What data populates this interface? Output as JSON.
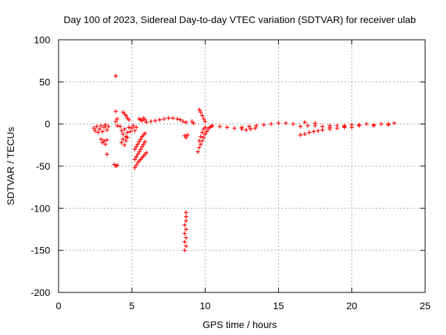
{
  "chart_data": {
    "type": "scatter",
    "title": "Day 100 of 2023, Sidereal Day-to-day VTEC variation (SDTVAR) for receiver ulab",
    "xlabel": "GPS time / hours",
    "ylabel": "SDTVAR / TECUs",
    "xlim": [
      0,
      25
    ],
    "ylim": [
      -200,
      100
    ],
    "xticks": [
      0,
      5,
      10,
      15,
      20,
      25
    ],
    "yticks": [
      -200,
      -150,
      -100,
      -50,
      0,
      50,
      100
    ],
    "grid": true,
    "marker": "plus",
    "color": "#ff0000",
    "series": [
      {
        "name": "SDTVAR",
        "points": [
          [
            2.4,
            -5
          ],
          [
            2.5,
            -8
          ],
          [
            2.6,
            -3
          ],
          [
            2.7,
            -10
          ],
          [
            2.8,
            -6
          ],
          [
            2.9,
            -2
          ],
          [
            3.0,
            -9
          ],
          [
            3.1,
            -4
          ],
          [
            3.2,
            -1
          ],
          [
            3.3,
            -7
          ],
          [
            3.4,
            -3
          ],
          [
            2.9,
            -18
          ],
          [
            3.0,
            -22
          ],
          [
            3.1,
            -20
          ],
          [
            3.2,
            -24
          ],
          [
            3.3,
            -19
          ],
          [
            3.3,
            -36
          ],
          [
            3.9,
            57
          ],
          [
            3.9,
            15
          ],
          [
            4.0,
            6
          ],
          [
            3.9,
            3
          ],
          [
            4.0,
            -2
          ],
          [
            3.8,
            -48
          ],
          [
            3.9,
            -50
          ],
          [
            4.0,
            -49
          ],
          [
            4.2,
            -3
          ],
          [
            4.3,
            -8
          ],
          [
            4.4,
            -12
          ],
          [
            4.5,
            -6
          ],
          [
            4.6,
            -15
          ],
          [
            4.7,
            -10
          ],
          [
            4.8,
            -4
          ],
          [
            4.9,
            -9
          ],
          [
            5.0,
            -5
          ],
          [
            5.1,
            -2
          ],
          [
            5.2,
            -8
          ],
          [
            5.3,
            -4
          ],
          [
            4.3,
            -22
          ],
          [
            4.4,
            -18
          ],
          [
            4.5,
            -25
          ],
          [
            4.6,
            -20
          ],
          [
            4.7,
            -16
          ],
          [
            4.4,
            14
          ],
          [
            4.5,
            12
          ],
          [
            4.6,
            10
          ],
          [
            4.7,
            7
          ],
          [
            4.8,
            5
          ],
          [
            5.2,
            -30
          ],
          [
            5.3,
            -27
          ],
          [
            5.4,
            -24
          ],
          [
            5.5,
            -21
          ],
          [
            5.6,
            -18
          ],
          [
            5.7,
            -15
          ],
          [
            5.8,
            -13
          ],
          [
            5.9,
            -11
          ],
          [
            5.2,
            -42
          ],
          [
            5.3,
            -39
          ],
          [
            5.4,
            -36
          ],
          [
            5.5,
            -33
          ],
          [
            5.6,
            -30
          ],
          [
            5.7,
            -27
          ],
          [
            5.8,
            -24
          ],
          [
            5.9,
            -21
          ],
          [
            5.2,
            -52
          ],
          [
            5.3,
            -49
          ],
          [
            5.4,
            -46
          ],
          [
            5.5,
            -44
          ],
          [
            5.6,
            -42
          ],
          [
            5.7,
            -40
          ],
          [
            5.8,
            -38
          ],
          [
            5.9,
            -36
          ],
          [
            6.0,
            -34
          ],
          [
            5.5,
            6
          ],
          [
            5.6,
            5
          ],
          [
            5.7,
            4
          ],
          [
            5.8,
            7
          ],
          [
            5.9,
            5
          ],
          [
            6.0,
            2
          ],
          [
            6.3,
            3
          ],
          [
            6.6,
            4
          ],
          [
            6.9,
            5
          ],
          [
            7.2,
            6
          ],
          [
            7.5,
            7
          ],
          [
            7.8,
            7
          ],
          [
            8.1,
            6
          ],
          [
            8.3,
            5
          ],
          [
            8.5,
            3
          ],
          [
            8.7,
            2
          ],
          [
            8.6,
            -14
          ],
          [
            8.7,
            -16
          ],
          [
            8.8,
            -13
          ],
          [
            9.1,
            3
          ],
          [
            9.2,
            1
          ],
          [
            8.7,
            -105
          ],
          [
            8.7,
            -110
          ],
          [
            8.7,
            -115
          ],
          [
            8.6,
            -120
          ],
          [
            8.7,
            -125
          ],
          [
            8.6,
            -130
          ],
          [
            8.7,
            -135
          ],
          [
            8.6,
            -140
          ],
          [
            8.7,
            -145
          ],
          [
            8.6,
            -150
          ],
          [
            9.6,
            17
          ],
          [
            9.7,
            14
          ],
          [
            9.8,
            10
          ],
          [
            9.9,
            6
          ],
          [
            10.0,
            3
          ],
          [
            9.5,
            -33
          ],
          [
            9.6,
            -28
          ],
          [
            9.7,
            -24
          ],
          [
            9.8,
            -20
          ],
          [
            9.9,
            -16
          ],
          [
            10.0,
            -12
          ],
          [
            10.1,
            -9
          ],
          [
            10.2,
            -6
          ],
          [
            10.3,
            -4
          ],
          [
            10.4,
            -3
          ],
          [
            9.6,
            -20
          ],
          [
            9.7,
            -15
          ],
          [
            9.8,
            -10
          ],
          [
            9.9,
            -6
          ],
          [
            10.0,
            -4
          ],
          [
            10.5,
            -2
          ],
          [
            11.0,
            -3
          ],
          [
            11.5,
            -4
          ],
          [
            12.0,
            -5
          ],
          [
            12.5,
            -4
          ],
          [
            13.0,
            -3
          ],
          [
            13.5,
            -2
          ],
          [
            14.0,
            -1
          ],
          [
            14.5,
            0
          ],
          [
            15.0,
            1
          ],
          [
            15.5,
            1
          ],
          [
            16.0,
            0
          ],
          [
            12.5,
            -6
          ],
          [
            12.8,
            -7
          ],
          [
            13.1,
            -6
          ],
          [
            13.4,
            -5
          ],
          [
            16.5,
            -3
          ],
          [
            17.0,
            -2
          ],
          [
            17.5,
            -2
          ],
          [
            18.0,
            -3
          ],
          [
            18.5,
            -2
          ],
          [
            19.0,
            -2
          ],
          [
            19.5,
            -2
          ],
          [
            20.0,
            -1
          ],
          [
            20.5,
            -1
          ],
          [
            21.0,
            0
          ],
          [
            21.5,
            -1
          ],
          [
            22.0,
            0
          ],
          [
            22.5,
            0
          ],
          [
            22.9,
            1
          ],
          [
            16.5,
            -13
          ],
          [
            16.8,
            -12
          ],
          [
            17.1,
            -10
          ],
          [
            17.4,
            -9
          ],
          [
            17.7,
            -8
          ],
          [
            18.0,
            -7
          ],
          [
            18.5,
            -6
          ],
          [
            19.0,
            -5
          ],
          [
            19.5,
            -4
          ],
          [
            20.0,
            -4
          ],
          [
            16.8,
            2
          ],
          [
            17.5,
            1
          ],
          [
            18.5,
            -4
          ],
          [
            19.5,
            -3
          ],
          [
            20.5,
            -2
          ],
          [
            21.5,
            -2
          ],
          [
            22.5,
            -1
          ]
        ]
      }
    ]
  }
}
